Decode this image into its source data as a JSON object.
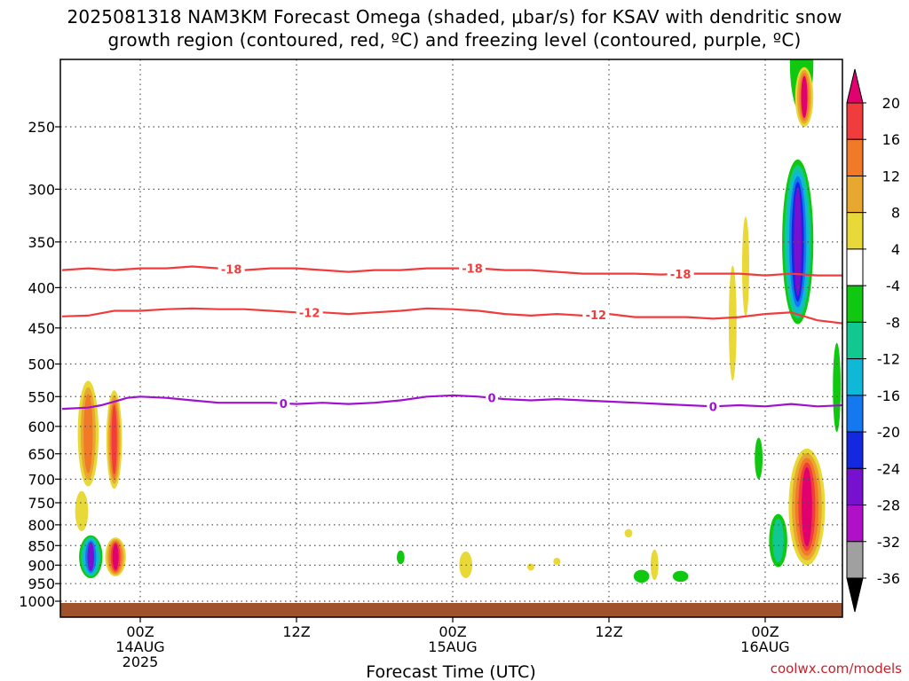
{
  "title": {
    "line1": "2025081318 NAM3KM Forecast Omega (shaded, μbar/s) for KSAV with dendritic snow",
    "line2": "growth region (contoured, red, ºC) and freezing level (contoured, purple, ºC)"
  },
  "credit": "coolwx.com/models",
  "chart_data": {
    "type": "contour",
    "xlabel": "Forecast Time (UTC)",
    "ylabel": "",
    "x_ticks": [
      {
        "hour": 6,
        "lines": [
          "00Z",
          "14AUG",
          "2025"
        ]
      },
      {
        "hour": 18,
        "lines": [
          "12Z"
        ]
      },
      {
        "hour": 30,
        "lines": [
          "00Z",
          "15AUG"
        ]
      },
      {
        "hour": 42,
        "lines": [
          "12Z"
        ]
      },
      {
        "hour": 54,
        "lines": [
          "00Z",
          "16AUG"
        ]
      }
    ],
    "xlim": [
      0,
      60
    ],
    "y_ticks": [
      "250",
      "300",
      "350",
      "400",
      "450",
      "500",
      "550",
      "600",
      "650",
      "700",
      "750",
      "800",
      "850",
      "900",
      "950",
      "1000"
    ],
    "y_values": [
      250,
      300,
      350,
      400,
      450,
      500,
      550,
      600,
      650,
      700,
      750,
      800,
      850,
      900,
      950,
      1000
    ],
    "ylim": [
      200,
      1010
    ],
    "y_inverted": true,
    "grid": true,
    "colorbar": {
      "labels": [
        "20",
        "16",
        "12",
        "8",
        "4",
        "-4",
        "-8",
        "-12",
        "-16",
        "-20",
        "-24",
        "-28",
        "-32",
        "-36"
      ],
      "colors": [
        "#e0006e",
        "#f03c3c",
        "#f07a28",
        "#e8a830",
        "#e8d838",
        "#ffffff",
        "#10c810",
        "#10c890",
        "#10b8d8",
        "#1478f0",
        "#1428e0",
        "#7810d0",
        "#b010c8",
        "#a0a0a0",
        "#000000"
      ]
    },
    "contours": [
      {
        "name": "-18",
        "color": "#f03c3c",
        "kind": "dgz",
        "points": [
          [
            0,
            380
          ],
          [
            2,
            378
          ],
          [
            4,
            380
          ],
          [
            6,
            378
          ],
          [
            8,
            378
          ],
          [
            10,
            376
          ],
          [
            12,
            378
          ],
          [
            14,
            380
          ],
          [
            16,
            378
          ],
          [
            18,
            378
          ],
          [
            20,
            380
          ],
          [
            22,
            382
          ],
          [
            24,
            380
          ],
          [
            26,
            380
          ],
          [
            28,
            378
          ],
          [
            30,
            378
          ],
          [
            32,
            378
          ],
          [
            34,
            380
          ],
          [
            36,
            380
          ],
          [
            38,
            382
          ],
          [
            40,
            384
          ],
          [
            42,
            384
          ],
          [
            44,
            384
          ],
          [
            46,
            385
          ],
          [
            48,
            384
          ],
          [
            50,
            384
          ],
          [
            52,
            384
          ],
          [
            54,
            386
          ],
          [
            56,
            384
          ],
          [
            58,
            386
          ],
          [
            60,
            386
          ]
        ],
        "label_hours": [
          13,
          31.5,
          47.5
        ]
      },
      {
        "name": "-12",
        "color": "#f03c3c",
        "kind": "dgz",
        "points": [
          [
            0,
            435
          ],
          [
            2,
            434
          ],
          [
            4,
            428
          ],
          [
            6,
            428
          ],
          [
            8,
            426
          ],
          [
            10,
            425
          ],
          [
            12,
            426
          ],
          [
            14,
            426
          ],
          [
            16,
            428
          ],
          [
            18,
            430
          ],
          [
            20,
            430
          ],
          [
            22,
            432
          ],
          [
            24,
            430
          ],
          [
            26,
            428
          ],
          [
            28,
            425
          ],
          [
            30,
            426
          ],
          [
            32,
            428
          ],
          [
            34,
            432
          ],
          [
            36,
            434
          ],
          [
            38,
            432
          ],
          [
            40,
            434
          ],
          [
            42,
            432
          ],
          [
            44,
            436
          ],
          [
            46,
            436
          ],
          [
            48,
            436
          ],
          [
            50,
            438
          ],
          [
            52,
            436
          ],
          [
            54,
            432
          ],
          [
            56,
            430
          ],
          [
            58,
            440
          ],
          [
            60,
            444
          ]
        ],
        "label_hours": [
          19,
          41
        ]
      },
      {
        "name": "0",
        "color": "#a010d0",
        "kind": "freezing",
        "points": [
          [
            0,
            570
          ],
          [
            2,
            568
          ],
          [
            3,
            564
          ],
          [
            4,
            558
          ],
          [
            5,
            552
          ],
          [
            6,
            550
          ],
          [
            8,
            552
          ],
          [
            10,
            556
          ],
          [
            12,
            560
          ],
          [
            14,
            560
          ],
          [
            16,
            560
          ],
          [
            18,
            562
          ],
          [
            20,
            560
          ],
          [
            22,
            562
          ],
          [
            24,
            560
          ],
          [
            26,
            556
          ],
          [
            28,
            550
          ],
          [
            30,
            548
          ],
          [
            32,
            550
          ],
          [
            34,
            554
          ],
          [
            36,
            556
          ],
          [
            38,
            554
          ],
          [
            40,
            556
          ],
          [
            42,
            558
          ],
          [
            44,
            560
          ],
          [
            46,
            562
          ],
          [
            48,
            564
          ],
          [
            50,
            566
          ],
          [
            52,
            564
          ],
          [
            54,
            566
          ],
          [
            56,
            562
          ],
          [
            58,
            566
          ],
          [
            60,
            564
          ]
        ],
        "label_hours": [
          17,
          33,
          50
        ]
      }
    ],
    "omega_blobs": [
      {
        "hour": 2.0,
        "p": 620,
        "hw": 0.8,
        "ph": 190,
        "rings": [
          "#e8d838",
          "#e8a830",
          "#f07a28"
        ]
      },
      {
        "hour": 4.0,
        "p": 630,
        "hw": 0.6,
        "ph": 180,
        "rings": [
          "#e8d838",
          "#e8a830",
          "#f07a28",
          "#f03c3c"
        ]
      },
      {
        "hour": 4.1,
        "p": 880,
        "hw": 0.8,
        "ph": 100,
        "rings": [
          "#e8d838",
          "#e8a830",
          "#f07a28",
          "#f03c3c",
          "#e0006e"
        ]
      },
      {
        "hour": 2.2,
        "p": 880,
        "hw": 0.9,
        "ph": 110,
        "rings": [
          "#10c810",
          "#10c890",
          "#10b8d8",
          "#1478f0",
          "#7810d0"
        ]
      },
      {
        "hour": 1.5,
        "p": 770,
        "hw": 0.5,
        "ph": 90,
        "rings": [
          "#e8d838"
        ]
      },
      {
        "hour": 26.0,
        "p": 880,
        "hw": 0.3,
        "ph": 35,
        "rings": [
          "#10c810"
        ]
      },
      {
        "hour": 31.0,
        "p": 900,
        "hw": 0.5,
        "ph": 70,
        "rings": [
          "#e8d838"
        ]
      },
      {
        "hour": 36.0,
        "p": 905,
        "hw": 0.2,
        "ph": 15,
        "rings": [
          "#e8d838"
        ]
      },
      {
        "hour": 38.0,
        "p": 890,
        "hw": 0.2,
        "ph": 10,
        "rings": [
          "#e8d838"
        ]
      },
      {
        "hour": 43.5,
        "p": 820,
        "hw": 0.3,
        "ph": 20,
        "rings": [
          "#e8d838"
        ]
      },
      {
        "hour": 44.5,
        "p": 930,
        "hw": 0.6,
        "ph": 35,
        "rings": [
          "#10c810"
        ]
      },
      {
        "hour": 45.5,
        "p": 900,
        "hw": 0.3,
        "ph": 80,
        "rings": [
          "#e8d838"
        ]
      },
      {
        "hour": 47.5,
        "p": 930,
        "hw": 0.6,
        "ph": 30,
        "rings": [
          "#10c810"
        ]
      },
      {
        "hour": 51.5,
        "p": 450,
        "hw": 0.3,
        "ph": 150,
        "rings": [
          "#e8d838"
        ]
      },
      {
        "hour": 53.5,
        "p": 660,
        "hw": 0.3,
        "ph": 80,
        "rings": [
          "#10c810"
        ]
      },
      {
        "hour": 52.5,
        "p": 380,
        "hw": 0.2,
        "ph": 110,
        "rings": [
          "#e8d838"
        ]
      },
      {
        "hour": 55.0,
        "p": 840,
        "hw": 0.7,
        "ph": 130,
        "rings": [
          "#10c810",
          "#10c890"
        ]
      },
      {
        "hour": 56.5,
        "p": 360,
        "hw": 1.2,
        "ph": 170,
        "rings": [
          "#10c810",
          "#10c890",
          "#10b8d8",
          "#1478f0",
          "#1428e0",
          "#7810d0"
        ]
      },
      {
        "hour": 56.8,
        "p": 210,
        "hw": 0.9,
        "ph": 60,
        "rings": [
          "#10c810"
        ]
      },
      {
        "hour": 57.0,
        "p": 230,
        "hw": 0.7,
        "ph": 40,
        "rings": [
          "#e8d838",
          "#e8a830",
          "#f07a28",
          "#e0006e"
        ]
      },
      {
        "hour": 57.2,
        "p": 770,
        "hw": 1.4,
        "ph": 260,
        "rings": [
          "#e8d838",
          "#e8a830",
          "#f07a28",
          "#f03c3c",
          "#e0006e"
        ]
      },
      {
        "hour": 59.5,
        "p": 540,
        "hw": 0.3,
        "ph": 140,
        "rings": [
          "#10c810"
        ]
      }
    ]
  }
}
